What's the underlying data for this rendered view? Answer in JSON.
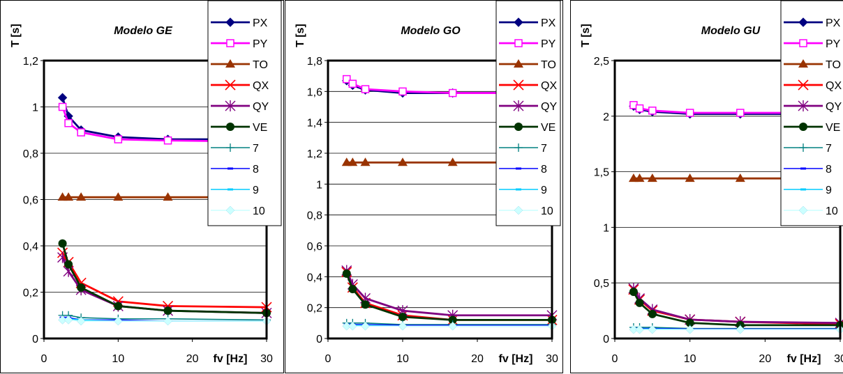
{
  "charts": [
    {
      "title": "Modelo GE",
      "ylabel": "T [s]",
      "xlabel": "fv [Hz]",
      "y_tick_labels": [
        "0",
        "0,2",
        "0,4",
        "0,6",
        "0,8",
        "1",
        "1,2"
      ],
      "x_tick_labels": [
        "0",
        "10",
        "20",
        "30"
      ]
    },
    {
      "title": "Modelo GO",
      "ylabel": "T [s]",
      "xlabel": "fv [Hz]",
      "y_tick_labels": [
        "0",
        "0,2",
        "0,4",
        "0,6",
        "0,8",
        "1",
        "1,2",
        "1,4",
        "1,6",
        "1,8"
      ],
      "x_tick_labels": [
        "0",
        "10",
        "20",
        "30"
      ]
    },
    {
      "title": "Modelo GU",
      "ylabel": "T [s]",
      "xlabel": "fv [Hz]",
      "y_tick_labels": [
        "0",
        "0,5",
        "1",
        "1,5",
        "2",
        "2,5"
      ],
      "x_tick_labels": [
        "0",
        "10",
        "20",
        "30"
      ]
    }
  ],
  "chart_data": [
    {
      "type": "line",
      "title": "Modelo GE",
      "xlabel": "fv [Hz]",
      "ylabel": "T [s]",
      "xlim": [
        0,
        30
      ],
      "ylim": [
        0,
        1.2
      ],
      "grid": true,
      "legend_position": "top-right",
      "x": [
        2.5,
        3.3,
        5,
        10,
        16.7,
        30
      ],
      "series": [
        {
          "name": "PX",
          "color": "#000080",
          "marker": "diamond",
          "values": [
            1.04,
            0.96,
            0.9,
            0.87,
            0.86,
            0.86
          ]
        },
        {
          "name": "PY",
          "color": "#ff00ff",
          "marker": "square-open",
          "values": [
            1.0,
            0.93,
            0.89,
            0.86,
            0.855,
            0.85
          ]
        },
        {
          "name": "TO",
          "color": "#993300",
          "marker": "triangle",
          "values": [
            0.61,
            0.61,
            0.61,
            0.61,
            0.61,
            0.61
          ]
        },
        {
          "name": "QX",
          "color": "#ff0000",
          "marker": "x",
          "values": [
            0.37,
            0.33,
            0.24,
            0.16,
            0.14,
            0.135
          ]
        },
        {
          "name": "QY",
          "color": "#800080",
          "marker": "star",
          "values": [
            0.35,
            0.29,
            0.21,
            0.14,
            0.12,
            0.11
          ]
        },
        {
          "name": "VE",
          "color": "#003300",
          "marker": "circle",
          "values": [
            0.41,
            0.32,
            0.22,
            0.14,
            0.12,
            0.11
          ]
        },
        {
          "name": "7",
          "color": "#008080",
          "marker": "plus",
          "values": [
            0.1,
            0.1,
            0.09,
            0.085,
            0.085,
            0.08
          ]
        },
        {
          "name": "8",
          "color": "#0000ff",
          "marker": "dash",
          "values": [
            0.09,
            0.09,
            0.08,
            0.08,
            0.075,
            0.075
          ]
        },
        {
          "name": "9",
          "color": "#00ccff",
          "marker": "dash",
          "values": [
            0.085,
            0.085,
            0.08,
            0.075,
            0.075,
            0.075
          ]
        },
        {
          "name": "10",
          "color": "#ccffff",
          "marker": "diamond-light",
          "values": [
            0.08,
            0.08,
            0.075,
            0.075,
            0.075,
            0.075
          ]
        }
      ]
    },
    {
      "type": "line",
      "title": "Modelo GO",
      "xlabel": "fv [Hz]",
      "ylabel": "T [s]",
      "xlim": [
        0,
        30
      ],
      "ylim": [
        0,
        1.8
      ],
      "grid": true,
      "legend_position": "top-right",
      "x": [
        2.5,
        3.3,
        5,
        10,
        16.7,
        30
      ],
      "series": [
        {
          "name": "PX",
          "color": "#000080",
          "marker": "diamond",
          "values": [
            1.67,
            1.64,
            1.61,
            1.59,
            1.59,
            1.59
          ]
        },
        {
          "name": "PY",
          "color": "#ff00ff",
          "marker": "square-open",
          "values": [
            1.68,
            1.65,
            1.615,
            1.6,
            1.59,
            1.59
          ]
        },
        {
          "name": "TO",
          "color": "#993300",
          "marker": "triangle",
          "values": [
            1.14,
            1.14,
            1.14,
            1.14,
            1.14,
            1.14
          ]
        },
        {
          "name": "QX",
          "color": "#ff0000",
          "marker": "x",
          "values": [
            0.43,
            0.33,
            0.23,
            0.15,
            0.12,
            0.12
          ]
        },
        {
          "name": "QY",
          "color": "#800080",
          "marker": "star",
          "values": [
            0.44,
            0.35,
            0.26,
            0.18,
            0.15,
            0.15
          ]
        },
        {
          "name": "VE",
          "color": "#003300",
          "marker": "circle",
          "values": [
            0.42,
            0.32,
            0.22,
            0.14,
            0.12,
            0.12
          ]
        },
        {
          "name": "7",
          "color": "#008080",
          "marker": "plus",
          "values": [
            0.1,
            0.1,
            0.1,
            0.09,
            0.09,
            0.09
          ]
        },
        {
          "name": "8",
          "color": "#0000ff",
          "marker": "dash",
          "values": [
            0.09,
            0.09,
            0.09,
            0.085,
            0.085,
            0.085
          ]
        },
        {
          "name": "9",
          "color": "#00ccff",
          "marker": "dash",
          "values": [
            0.085,
            0.085,
            0.085,
            0.08,
            0.08,
            0.08
          ]
        },
        {
          "name": "10",
          "color": "#ccffff",
          "marker": "diamond-light",
          "values": [
            0.08,
            0.08,
            0.08,
            0.08,
            0.08,
            0.08
          ]
        }
      ]
    },
    {
      "type": "line",
      "title": "Modelo GU",
      "xlabel": "fv [Hz]",
      "ylabel": "T [s]",
      "xlim": [
        0,
        30
      ],
      "ylim": [
        0,
        2.5
      ],
      "grid": true,
      "legend_position": "top-right",
      "x": [
        2.5,
        3.3,
        5,
        10,
        16.7,
        30
      ],
      "series": [
        {
          "name": "PX",
          "color": "#000080",
          "marker": "diamond",
          "values": [
            2.09,
            2.06,
            2.04,
            2.02,
            2.02,
            2.02
          ]
        },
        {
          "name": "PY",
          "color": "#ff00ff",
          "marker": "square-open",
          "values": [
            2.1,
            2.07,
            2.05,
            2.03,
            2.03,
            2.03
          ]
        },
        {
          "name": "TO",
          "color": "#993300",
          "marker": "triangle",
          "values": [
            1.44,
            1.44,
            1.44,
            1.44,
            1.44,
            1.44
          ]
        },
        {
          "name": "QX",
          "color": "#ff0000",
          "marker": "x",
          "values": [
            0.44,
            0.35,
            0.25,
            0.17,
            0.15,
            0.13
          ]
        },
        {
          "name": "QY",
          "color": "#800080",
          "marker": "star",
          "values": [
            0.45,
            0.36,
            0.26,
            0.17,
            0.15,
            0.14
          ]
        },
        {
          "name": "VE",
          "color": "#003300",
          "marker": "circle",
          "values": [
            0.42,
            0.32,
            0.22,
            0.14,
            0.12,
            0.12
          ]
        },
        {
          "name": "7",
          "color": "#008080",
          "marker": "plus",
          "values": [
            0.1,
            0.1,
            0.1,
            0.09,
            0.09,
            0.09
          ]
        },
        {
          "name": "8",
          "color": "#0000ff",
          "marker": "dash",
          "values": [
            0.09,
            0.09,
            0.09,
            0.085,
            0.085,
            0.085
          ]
        },
        {
          "name": "9",
          "color": "#00ccff",
          "marker": "dash",
          "values": [
            0.085,
            0.085,
            0.085,
            0.08,
            0.08,
            0.08
          ]
        },
        {
          "name": "10",
          "color": "#ccffff",
          "marker": "diamond-light",
          "values": [
            0.08,
            0.08,
            0.08,
            0.08,
            0.08,
            0.08
          ]
        }
      ]
    }
  ]
}
